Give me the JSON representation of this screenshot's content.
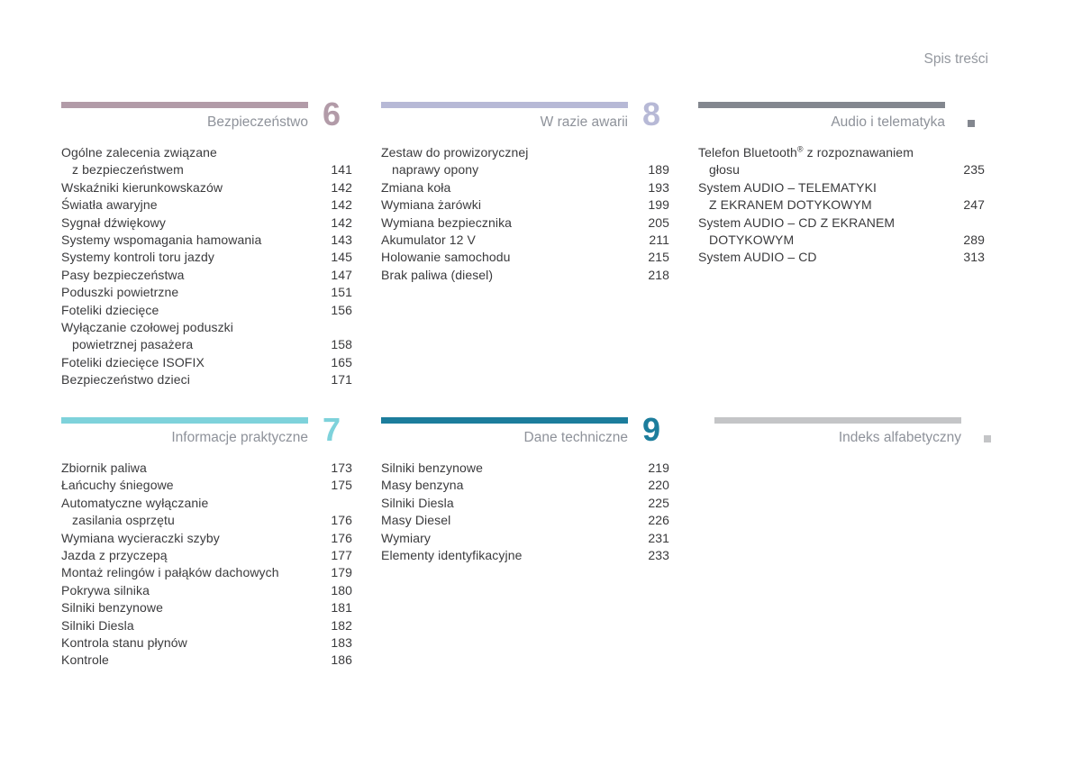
{
  "page": {
    "title": "Spis treści"
  },
  "sections": [
    {
      "key": "bezpieczenstwo",
      "row": 1,
      "title": "Bezpieczeństwo",
      "accent": "#b29ba8",
      "marker": {
        "type": "number",
        "text": "6"
      },
      "items": [
        {
          "lines": [
            "Ogólne zalecenia związane",
            "z bezpieczeństwem"
          ],
          "page": "141"
        },
        {
          "lines": [
            "Wskaźniki kierunkowskazów"
          ],
          "page": "142"
        },
        {
          "lines": [
            "Światła awaryjne"
          ],
          "page": "142"
        },
        {
          "lines": [
            "Sygnał dźwiękowy"
          ],
          "page": "142"
        },
        {
          "lines": [
            "Systemy wspomagania hamowania"
          ],
          "page": "143"
        },
        {
          "lines": [
            "Systemy kontroli toru jazdy"
          ],
          "page": "145"
        },
        {
          "lines": [
            "Pasy bezpieczeństwa"
          ],
          "page": "147"
        },
        {
          "lines": [
            "Poduszki powietrzne"
          ],
          "page": "151"
        },
        {
          "lines": [
            "Foteliki dziecięce"
          ],
          "page": "156"
        },
        {
          "lines": [
            "Wyłączanie czołowej poduszki",
            "powietrznej pasażera"
          ],
          "page": "158"
        },
        {
          "lines": [
            "Foteliki dziecięce ISOFIX"
          ],
          "page": "165"
        },
        {
          "lines": [
            "Bezpieczeństwo dzieci"
          ],
          "page": "171"
        }
      ]
    },
    {
      "key": "w-razie-awarii",
      "row": 1,
      "title": "W razie awarii",
      "accent": "#b7b9d6",
      "marker": {
        "type": "number",
        "text": "8"
      },
      "items": [
        {
          "lines": [
            "Zestaw do prowizorycznej",
            "naprawy opony"
          ],
          "page": "189"
        },
        {
          "lines": [
            "Zmiana koła"
          ],
          "page": "193"
        },
        {
          "lines": [
            "Wymiana żarówki"
          ],
          "page": "199"
        },
        {
          "lines": [
            "Wymiana bezpiecznika"
          ],
          "page": "205"
        },
        {
          "lines": [
            "Akumulator 12 V"
          ],
          "page": "211"
        },
        {
          "lines": [
            "Holowanie samochodu"
          ],
          "page": "215"
        },
        {
          "lines": [
            "Brak paliwa (diesel)"
          ],
          "page": "218"
        }
      ]
    },
    {
      "key": "audio",
      "row": 1,
      "title": "Audio i telematyka",
      "accent": "#83878f",
      "marker": {
        "type": "square"
      },
      "items": [
        {
          "lines": [
            "Telefon Bluetooth® z rozpoznawaniem",
            "głosu"
          ],
          "page": "235"
        },
        {
          "lines": [
            "System AUDIO – TELEMATYKI",
            "Z EKRANEM DOTYKOWYM"
          ],
          "page": "247"
        },
        {
          "lines": [
            "System AUDIO – CD Z EKRANEM",
            "DOTYKOWYM"
          ],
          "page": "289"
        },
        {
          "lines": [
            "System AUDIO – CD"
          ],
          "page": "313"
        }
      ]
    },
    {
      "key": "informacje",
      "row": 2,
      "title": "Informacje praktyczne",
      "accent": "#7ed2db",
      "marker": {
        "type": "number",
        "text": "7"
      },
      "items": [
        {
          "lines": [
            "Zbiornik paliwa"
          ],
          "page": "173"
        },
        {
          "lines": [
            "Łańcuchy śniegowe"
          ],
          "page": "175"
        },
        {
          "lines": [
            "Automatyczne wyłączanie",
            "zasilania osprzętu"
          ],
          "page": "176"
        },
        {
          "lines": [
            "Wymiana wycieraczki szyby"
          ],
          "page": "176"
        },
        {
          "lines": [
            "Jazda z przyczepą"
          ],
          "page": "177"
        },
        {
          "lines": [
            "Montaż relingów i pałąków dachowych"
          ],
          "page": "179"
        },
        {
          "lines": [
            "Pokrywa silnika"
          ],
          "page": "180"
        },
        {
          "lines": [
            "Silniki benzynowe"
          ],
          "page": "181"
        },
        {
          "lines": [
            "Silniki Diesla"
          ],
          "page": "182"
        },
        {
          "lines": [
            "Kontrola stanu płynów"
          ],
          "page": "183"
        },
        {
          "lines": [
            "Kontrole"
          ],
          "page": "186"
        }
      ]
    },
    {
      "key": "dane",
      "row": 2,
      "title": "Dane techniczne",
      "accent": "#1c7d9c",
      "marker": {
        "type": "number",
        "text": "9"
      },
      "items": [
        {
          "lines": [
            "Silniki benzynowe"
          ],
          "page": "219"
        },
        {
          "lines": [
            "Masy benzyna"
          ],
          "page": "220"
        },
        {
          "lines": [
            "Silniki Diesla"
          ],
          "page": "225"
        },
        {
          "lines": [
            "Masy Diesel"
          ],
          "page": "226"
        },
        {
          "lines": [
            "Wymiary"
          ],
          "page": "231"
        },
        {
          "lines": [
            "Elementy identyfikacyjne"
          ],
          "page": "233"
        }
      ]
    },
    {
      "key": "indeks",
      "row": 2,
      "title": "Indeks alfabetyczny",
      "accent": "#c4c5c7",
      "marker": {
        "type": "square"
      },
      "items": []
    }
  ]
}
